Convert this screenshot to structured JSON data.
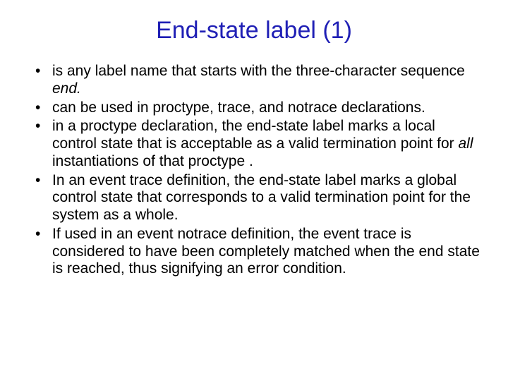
{
  "background_color": "#ffffff",
  "title": {
    "text": "End-state label (1)",
    "color": "#1f1fb5",
    "fontsize": 34,
    "fontweight": "normal",
    "align": "center"
  },
  "body": {
    "color": "#000000",
    "fontsize": 21,
    "bullets": [
      {
        "pre": "is any label name that starts with the three-character sequence ",
        "italic": "end.",
        "post": ""
      },
      {
        "pre": " can be used in proctype, trace, and notrace declarations.",
        "italic": "",
        "post": ""
      },
      {
        "pre": "in a proctype declaration, the end-state label marks a local control state that is acceptable as a valid termination point for ",
        "italic": "all",
        "post": " instantiations of that proctype ."
      },
      {
        "pre": "In an event trace definition, the end-state label marks a global control state that corresponds to a valid termination point for the system as a whole.",
        "italic": "",
        "post": ""
      },
      {
        "pre": "If used in an event notrace definition, the event trace is considered to have been completely matched when the end state is reached, thus signifying an error condition.",
        "italic": "",
        "post": ""
      }
    ]
  }
}
